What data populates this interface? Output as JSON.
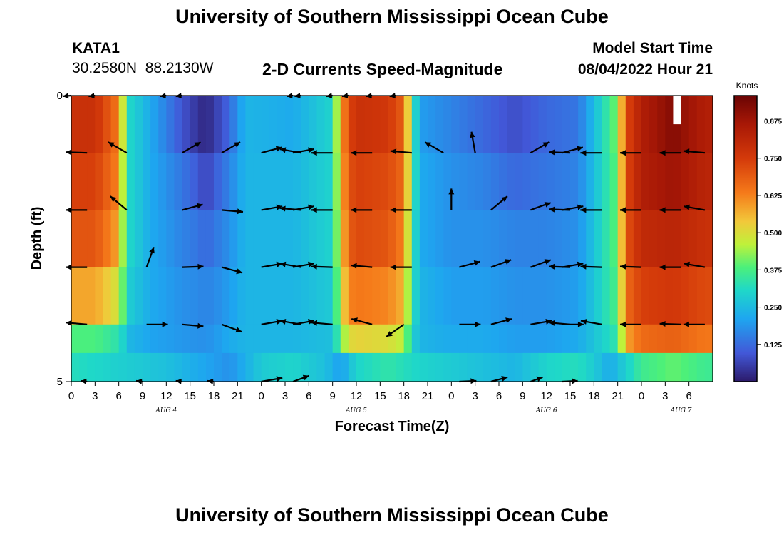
{
  "header": {
    "title": "University of Southern Mississippi Ocean Cube",
    "station_id": "KATA1",
    "station_coords": "30.2580N  88.2130W",
    "model_start_label": "Model Start Time",
    "model_start_value": "08/04/2022 Hour 21"
  },
  "footer": {
    "title": "University of Southern Mississippi Ocean Cube"
  },
  "colors": {
    "low": "#2c1a6a",
    "mid": "#3ddcb0",
    "high": "#b01a06",
    "arrow": "#000000"
  },
  "chart_data": {
    "type": "heatmap",
    "title": "2-D Currents Speed-Magnitude",
    "xlabel": "Forecast Time(Z)",
    "ylabel": "Depth (ft)",
    "colorbar_label": "Knots",
    "colorbar_range": [
      0,
      0.96
    ],
    "colorbar_ticks": [
      "0.125",
      "0.250",
      "0.375",
      "0.500",
      "0.625",
      "0.750",
      "0.875"
    ],
    "colorbar_tick_values": [
      0.125,
      0.25,
      0.375,
      0.5,
      0.625,
      0.75,
      0.875
    ],
    "x_range_hours": [
      0,
      81
    ],
    "x_ticks": [
      "0",
      "3",
      "6",
      "9",
      "12",
      "15",
      "18",
      "21",
      "0",
      "3",
      "6",
      "9",
      "12",
      "15",
      "18",
      "21",
      "0",
      "3",
      "6",
      "9",
      "12",
      "15",
      "18",
      "21",
      "0",
      "3",
      "6"
    ],
    "date_labels": [
      {
        "label": "AUG 4",
        "hour": 12
      },
      {
        "label": "AUG 5",
        "hour": 36
      },
      {
        "label": "AUG 6",
        "hour": 60
      },
      {
        "label": "AUG 7",
        "hour": 77
      }
    ],
    "y_range": [
      0,
      5
    ],
    "y_tick_labels": [
      {
        "label": "0",
        "value": 0
      },
      {
        "label": "5",
        "value": 5
      }
    ],
    "y_minor_ticks": [
      1,
      2,
      3,
      4
    ],
    "depth_bands": [
      0,
      1,
      2,
      3,
      4
    ],
    "profile_hours": [
      0,
      3,
      5.5,
      6.5,
      7.5,
      10,
      14,
      16,
      17,
      18,
      20,
      22,
      28,
      33,
      34,
      35,
      36,
      40,
      42,
      43,
      44,
      48,
      52,
      56,
      60,
      64,
      69,
      70,
      72,
      76,
      80,
      81
    ],
    "speed_profiles": [
      [
        0.78,
        0.78,
        0.66,
        0.48,
        0.3,
        0.22,
        0.09,
        0.04,
        0.02,
        0.05,
        0.12,
        0.24,
        0.22,
        0.3,
        0.58,
        0.72,
        0.78,
        0.76,
        0.68,
        0.38,
        0.2,
        0.16,
        0.12,
        0.08,
        0.12,
        0.14,
        0.42,
        0.72,
        0.84,
        0.92,
        0.84,
        0.84
      ],
      [
        0.74,
        0.74,
        0.64,
        0.46,
        0.3,
        0.22,
        0.14,
        0.1,
        0.06,
        0.1,
        0.16,
        0.24,
        0.24,
        0.3,
        0.55,
        0.7,
        0.74,
        0.72,
        0.66,
        0.38,
        0.22,
        0.18,
        0.16,
        0.12,
        0.14,
        0.16,
        0.4,
        0.72,
        0.84,
        0.88,
        0.82,
        0.82
      ],
      [
        0.7,
        0.7,
        0.6,
        0.44,
        0.3,
        0.22,
        0.16,
        0.14,
        0.12,
        0.14,
        0.18,
        0.24,
        0.24,
        0.3,
        0.52,
        0.68,
        0.72,
        0.7,
        0.62,
        0.36,
        0.22,
        0.18,
        0.18,
        0.16,
        0.16,
        0.18,
        0.4,
        0.7,
        0.8,
        0.82,
        0.78,
        0.78
      ],
      [
        0.58,
        0.58,
        0.5,
        0.4,
        0.28,
        0.22,
        0.18,
        0.17,
        0.16,
        0.17,
        0.2,
        0.24,
        0.24,
        0.28,
        0.48,
        0.62,
        0.64,
        0.62,
        0.56,
        0.34,
        0.24,
        0.2,
        0.2,
        0.18,
        0.18,
        0.2,
        0.38,
        0.66,
        0.74,
        0.76,
        0.72,
        0.72
      ],
      [
        0.38,
        0.38,
        0.34,
        0.3,
        0.24,
        0.21,
        0.19,
        0.18,
        0.18,
        0.19,
        0.22,
        0.24,
        0.24,
        0.26,
        0.4,
        0.5,
        0.52,
        0.5,
        0.46,
        0.3,
        0.24,
        0.22,
        0.22,
        0.2,
        0.2,
        0.22,
        0.34,
        0.58,
        0.66,
        0.68,
        0.64,
        0.64
      ]
    ],
    "bottom_profile_hours": [
      0,
      4,
      8,
      12,
      16,
      20,
      24,
      28,
      32,
      34,
      36,
      40,
      44,
      48,
      52,
      56,
      60,
      64,
      66,
      68,
      72,
      76,
      80,
      81
    ],
    "bottom_speeds": [
      0.32,
      0.3,
      0.28,
      0.26,
      0.22,
      0.18,
      0.28,
      0.3,
      0.26,
      0.2,
      0.3,
      0.34,
      0.3,
      0.28,
      0.26,
      0.24,
      0.3,
      0.32,
      0.28,
      0.22,
      0.36,
      0.4,
      0.36,
      0.36
    ],
    "missing": [
      {
        "hour": 76.5,
        "depth_start": 0,
        "depth_end": 0.5
      }
    ],
    "vector_rows": [
      [
        {
          "hour": 0,
          "dir": 270,
          "len": 0.4
        },
        {
          "hour": 3,
          "dir": 270,
          "len": 0.3
        },
        {
          "hour": 12,
          "dir": 265,
          "len": 0.3
        },
        {
          "hour": 14,
          "dir": 270,
          "len": 0.3
        },
        {
          "hour": 28,
          "dir": 265,
          "len": 0.3
        },
        {
          "hour": 29,
          "dir": 265,
          "len": 0.3
        },
        {
          "hour": 33,
          "dir": 270,
          "len": 0.3
        },
        {
          "hour": 35,
          "dir": 275,
          "len": 0.3
        },
        {
          "hour": 38,
          "dir": 280,
          "len": 0.3
        },
        {
          "hour": 41,
          "dir": 270,
          "len": 0.3
        }
      ],
      [
        {
          "hour": 2,
          "dir": 272,
          "len": 1
        },
        {
          "hour": 7,
          "dir": 300,
          "len": 1
        },
        {
          "hour": 14,
          "dir": 60,
          "len": 1
        },
        {
          "hour": 19,
          "dir": 60,
          "len": 1
        },
        {
          "hour": 24,
          "dir": 75,
          "len": 1
        },
        {
          "hour": 28,
          "dir": 80,
          "len": 1
        },
        {
          "hour": 29,
          "dir": 280,
          "len": 1
        },
        {
          "hour": 33,
          "dir": 270,
          "len": 1
        },
        {
          "hour": 38,
          "dir": 270,
          "len": 1
        },
        {
          "hour": 43,
          "dir": 275,
          "len": 1
        },
        {
          "hour": 47,
          "dir": 300,
          "len": 1
        },
        {
          "hour": 51,
          "dir": 350,
          "len": 1
        },
        {
          "hour": 58,
          "dir": 60,
          "len": 1
        },
        {
          "hour": 62,
          "dir": 75,
          "len": 1
        },
        {
          "hour": 63,
          "dir": 272,
          "len": 1
        },
        {
          "hour": 67,
          "dir": 270,
          "len": 1
        },
        {
          "hour": 72,
          "dir": 270,
          "len": 1
        },
        {
          "hour": 77,
          "dir": 270,
          "len": 1
        },
        {
          "hour": 80,
          "dir": 275,
          "len": 1
        }
      ],
      [
        {
          "hour": 2,
          "dir": 270,
          "len": 1
        },
        {
          "hour": 7,
          "dir": 310,
          "len": 1
        },
        {
          "hour": 14,
          "dir": 75,
          "len": 1
        },
        {
          "hour": 19,
          "dir": 95,
          "len": 1
        },
        {
          "hour": 24,
          "dir": 80,
          "len": 1
        },
        {
          "hour": 28,
          "dir": 80,
          "len": 1
        },
        {
          "hour": 29,
          "dir": 275,
          "len": 1
        },
        {
          "hour": 33,
          "dir": 270,
          "len": 1
        },
        {
          "hour": 38,
          "dir": 270,
          "len": 1
        },
        {
          "hour": 43,
          "dir": 270,
          "len": 1
        },
        {
          "hour": 48,
          "dir": 0,
          "len": 1
        },
        {
          "hour": 53,
          "dir": 50,
          "len": 1
        },
        {
          "hour": 58,
          "dir": 70,
          "len": 1
        },
        {
          "hour": 62,
          "dir": 80,
          "len": 1
        },
        {
          "hour": 63,
          "dir": 272,
          "len": 1
        },
        {
          "hour": 67,
          "dir": 270,
          "len": 1
        },
        {
          "hour": 72,
          "dir": 270,
          "len": 1
        },
        {
          "hour": 77,
          "dir": 270,
          "len": 1
        },
        {
          "hour": 80,
          "dir": 280,
          "len": 1
        }
      ],
      [
        {
          "hour": 2,
          "dir": 270,
          "len": 1
        },
        {
          "hour": 9.5,
          "dir": 20,
          "len": 1
        },
        {
          "hour": 14,
          "dir": 88,
          "len": 1
        },
        {
          "hour": 19,
          "dir": 105,
          "len": 1
        },
        {
          "hour": 24,
          "dir": 80,
          "len": 1
        },
        {
          "hour": 28,
          "dir": 80,
          "len": 1
        },
        {
          "hour": 29,
          "dir": 280,
          "len": 1
        },
        {
          "hour": 33,
          "dir": 272,
          "len": 1
        },
        {
          "hour": 38,
          "dir": 275,
          "len": 1
        },
        {
          "hour": 43,
          "dir": 270,
          "len": 1
        },
        {
          "hour": 49,
          "dir": 75,
          "len": 1
        },
        {
          "hour": 53,
          "dir": 70,
          "len": 1
        },
        {
          "hour": 58,
          "dir": 70,
          "len": 1
        },
        {
          "hour": 62,
          "dir": 80,
          "len": 1
        },
        {
          "hour": 63,
          "dir": 272,
          "len": 1
        },
        {
          "hour": 67,
          "dir": 272,
          "len": 1
        },
        {
          "hour": 72,
          "dir": 272,
          "len": 1
        },
        {
          "hour": 77,
          "dir": 270,
          "len": 1
        },
        {
          "hour": 80,
          "dir": 280,
          "len": 1
        }
      ],
      [
        {
          "hour": 2,
          "dir": 275,
          "len": 1
        },
        {
          "hour": 9.5,
          "dir": 90,
          "len": 1
        },
        {
          "hour": 14,
          "dir": 95,
          "len": 1
        },
        {
          "hour": 19,
          "dir": 110,
          "len": 1
        },
        {
          "hour": 24,
          "dir": 80,
          "len": 1
        },
        {
          "hour": 28,
          "dir": 80,
          "len": 1
        },
        {
          "hour": 29,
          "dir": 280,
          "len": 1
        },
        {
          "hour": 33,
          "dir": 275,
          "len": 1
        },
        {
          "hour": 38,
          "dir": 285,
          "len": 1
        },
        {
          "hour": 42,
          "dir": 235,
          "len": 1
        },
        {
          "hour": 49,
          "dir": 90,
          "len": 1
        },
        {
          "hour": 53,
          "dir": 75,
          "len": 1
        },
        {
          "hour": 58,
          "dir": 80,
          "len": 1
        },
        {
          "hour": 62,
          "dir": 90,
          "len": 1
        },
        {
          "hour": 63,
          "dir": 275,
          "len": 1
        },
        {
          "hour": 67,
          "dir": 280,
          "len": 1
        },
        {
          "hour": 72,
          "dir": 270,
          "len": 1
        },
        {
          "hour": 77,
          "dir": 272,
          "len": 1
        },
        {
          "hour": 80,
          "dir": 270,
          "len": 1
        }
      ],
      [
        {
          "hour": 2,
          "dir": 270,
          "len": 0.3
        },
        {
          "hour": 9,
          "dir": 270,
          "len": 0.3
        },
        {
          "hour": 14,
          "dir": 270,
          "len": 0.3
        },
        {
          "hour": 18,
          "dir": 270,
          "len": 0.3
        },
        {
          "hour": 24,
          "dir": 80,
          "len": 1
        },
        {
          "hour": 28,
          "dir": 70,
          "len": 0.8
        },
        {
          "hour": 49,
          "dir": 90,
          "len": 0.8
        },
        {
          "hour": 53,
          "dir": 75,
          "len": 0.8
        },
        {
          "hour": 58,
          "dir": 70,
          "len": 0.6
        },
        {
          "hour": 62,
          "dir": 115,
          "len": 0.8
        }
      ]
    ]
  }
}
